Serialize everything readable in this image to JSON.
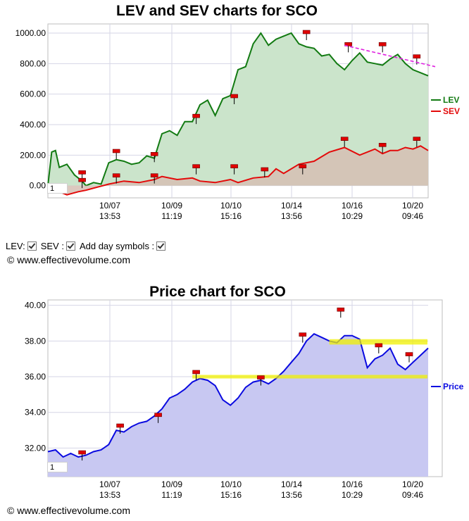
{
  "colors": {
    "lev_line": "#127a12",
    "lev_fill": "#cbe4cb",
    "sev_line": "#e30a0a",
    "sev_fill": "#d6c0b4",
    "price_line": "#0a0ae0",
    "price_fill": "#c8c8f2",
    "trend": "#e020e0",
    "band": "#f0f000",
    "marker": "#e00000"
  },
  "x_tick_labels": [
    {
      "date": "10/07",
      "time": "13:53"
    },
    {
      "date": "10/09",
      "time": "11:19"
    },
    {
      "date": "10/10",
      "time": "15:16"
    },
    {
      "date": "10/14",
      "time": "13:56"
    },
    {
      "date": "10/16",
      "time": "10:29"
    },
    {
      "date": "10/20",
      "time": "09:46"
    }
  ],
  "controls": {
    "lev_label": "LEV:",
    "sev_label": "SEV :",
    "day_label": "Add day symbols :"
  },
  "copyright": "© www.effectivevolume.com",
  "chart_data": [
    {
      "type": "area",
      "title": "LEV and SEV charts for SCO",
      "xlabel": "",
      "ylabel": "",
      "yticks": [
        "0.00",
        "200.00",
        "400.00",
        "600.00",
        "800.00",
        "1000.00"
      ],
      "ylim": [
        -80,
        1060
      ],
      "grid": true,
      "legend_position": "right",
      "page_box": "1",
      "series": [
        {
          "name": "LEV",
          "x": [
            0,
            0.01,
            0.02,
            0.03,
            0.05,
            0.07,
            0.09,
            0.1,
            0.12,
            0.14,
            0.16,
            0.18,
            0.2,
            0.22,
            0.24,
            0.26,
            0.28,
            0.3,
            0.32,
            0.34,
            0.36,
            0.38,
            0.4,
            0.42,
            0.44,
            0.46,
            0.48,
            0.5,
            0.52,
            0.54,
            0.56,
            0.58,
            0.6,
            0.62,
            0.64,
            0.66,
            0.68,
            0.7,
            0.72,
            0.74,
            0.76,
            0.78,
            0.8,
            0.82,
            0.84,
            0.86,
            0.88,
            0.9,
            0.92,
            0.94,
            0.96,
            0.98,
            1.0
          ],
          "values": [
            0,
            220,
            230,
            120,
            140,
            70,
            30,
            0,
            20,
            10,
            150,
            170,
            160,
            140,
            150,
            195,
            180,
            340,
            360,
            330,
            420,
            420,
            530,
            560,
            460,
            570,
            590,
            760,
            780,
            930,
            1000,
            920,
            960,
            980,
            1000,
            930,
            910,
            900,
            850,
            860,
            800,
            760,
            820,
            870,
            810,
            800,
            790,
            830,
            860,
            800,
            760,
            740,
            720
          ]
        },
        {
          "name": "SEV",
          "x": [
            0,
            0.02,
            0.05,
            0.08,
            0.1,
            0.13,
            0.16,
            0.18,
            0.2,
            0.24,
            0.28,
            0.3,
            0.34,
            0.38,
            0.4,
            0.44,
            0.48,
            0.5,
            0.54,
            0.58,
            0.6,
            0.62,
            0.66,
            0.7,
            0.74,
            0.78,
            0.82,
            0.86,
            0.88,
            0.9,
            0.92,
            0.94,
            0.96,
            0.98,
            1.0
          ],
          "values": [
            0,
            -30,
            -60,
            -40,
            -30,
            -10,
            10,
            20,
            30,
            20,
            40,
            60,
            40,
            50,
            30,
            20,
            40,
            20,
            50,
            60,
            110,
            80,
            140,
            160,
            220,
            250,
            200,
            240,
            210,
            230,
            230,
            250,
            240,
            260,
            230
          ]
        }
      ],
      "trendline": {
        "from": [
          0.78,
          920
        ],
        "to": [
          1.0,
          780
        ]
      },
      "markers": [
        {
          "x": 0.09,
          "y": 80
        },
        {
          "x": 0.09,
          "y": 30
        },
        {
          "x": 0.18,
          "y": 220
        },
        {
          "x": 0.18,
          "y": 60
        },
        {
          "x": 0.28,
          "y": 200
        },
        {
          "x": 0.28,
          "y": 60
        },
        {
          "x": 0.39,
          "y": 450
        },
        {
          "x": 0.39,
          "y": 120
        },
        {
          "x": 0.49,
          "y": 580
        },
        {
          "x": 0.49,
          "y": 120
        },
        {
          "x": 0.57,
          "y": 100
        },
        {
          "x": 0.67,
          "y": 120
        },
        {
          "x": 0.68,
          "y": 1000
        },
        {
          "x": 0.78,
          "y": 300
        },
        {
          "x": 0.79,
          "y": 920
        },
        {
          "x": 0.88,
          "y": 920
        },
        {
          "x": 0.88,
          "y": 260
        },
        {
          "x": 0.97,
          "y": 840
        },
        {
          "x": 0.97,
          "y": 300
        }
      ]
    },
    {
      "type": "area",
      "title": "Price chart for SCO",
      "xlabel": "",
      "ylabel": "",
      "yticks": [
        "32.00",
        "34.00",
        "36.00",
        "38.00",
        "40.00"
      ],
      "ylim": [
        30.4,
        40.3
      ],
      "grid": true,
      "legend_position": "right",
      "page_box": "1",
      "series": [
        {
          "name": "Price",
          "x": [
            0,
            0.02,
            0.04,
            0.06,
            0.08,
            0.1,
            0.12,
            0.14,
            0.16,
            0.18,
            0.2,
            0.22,
            0.24,
            0.26,
            0.28,
            0.3,
            0.32,
            0.34,
            0.36,
            0.38,
            0.4,
            0.42,
            0.44,
            0.46,
            0.48,
            0.5,
            0.52,
            0.54,
            0.56,
            0.58,
            0.6,
            0.62,
            0.64,
            0.66,
            0.68,
            0.7,
            0.72,
            0.74,
            0.76,
            0.78,
            0.8,
            0.82,
            0.84,
            0.86,
            0.88,
            0.9,
            0.92,
            0.94,
            0.96,
            0.98,
            1.0
          ],
          "values": [
            31.8,
            31.9,
            31.5,
            31.7,
            31.5,
            31.6,
            31.8,
            31.9,
            32.2,
            33.0,
            32.9,
            33.2,
            33.4,
            33.5,
            33.8,
            34.2,
            34.8,
            35.0,
            35.3,
            35.7,
            35.9,
            35.8,
            35.5,
            34.7,
            34.4,
            34.8,
            35.4,
            35.7,
            35.8,
            35.6,
            35.9,
            36.3,
            36.8,
            37.3,
            38.0,
            38.4,
            38.2,
            38.0,
            37.9,
            38.3,
            38.3,
            38.1,
            36.5,
            37.0,
            37.2,
            37.6,
            36.7,
            36.4,
            36.8,
            37.2,
            37.6
          ]
        }
      ],
      "bands": [
        {
          "x0": 0.38,
          "x1": 1.04,
          "y0": 35.9,
          "y1": 36.1
        },
        {
          "x0": 0.74,
          "x1": 1.02,
          "y0": 37.8,
          "y1": 38.1
        }
      ],
      "markers": [
        {
          "x": 0.09,
          "y": 31.7
        },
        {
          "x": 0.19,
          "y": 33.2
        },
        {
          "x": 0.29,
          "y": 33.8
        },
        {
          "x": 0.39,
          "y": 36.2
        },
        {
          "x": 0.56,
          "y": 35.9
        },
        {
          "x": 0.67,
          "y": 38.3
        },
        {
          "x": 0.77,
          "y": 39.7
        },
        {
          "x": 0.87,
          "y": 37.7
        },
        {
          "x": 0.95,
          "y": 37.2
        }
      ]
    }
  ]
}
